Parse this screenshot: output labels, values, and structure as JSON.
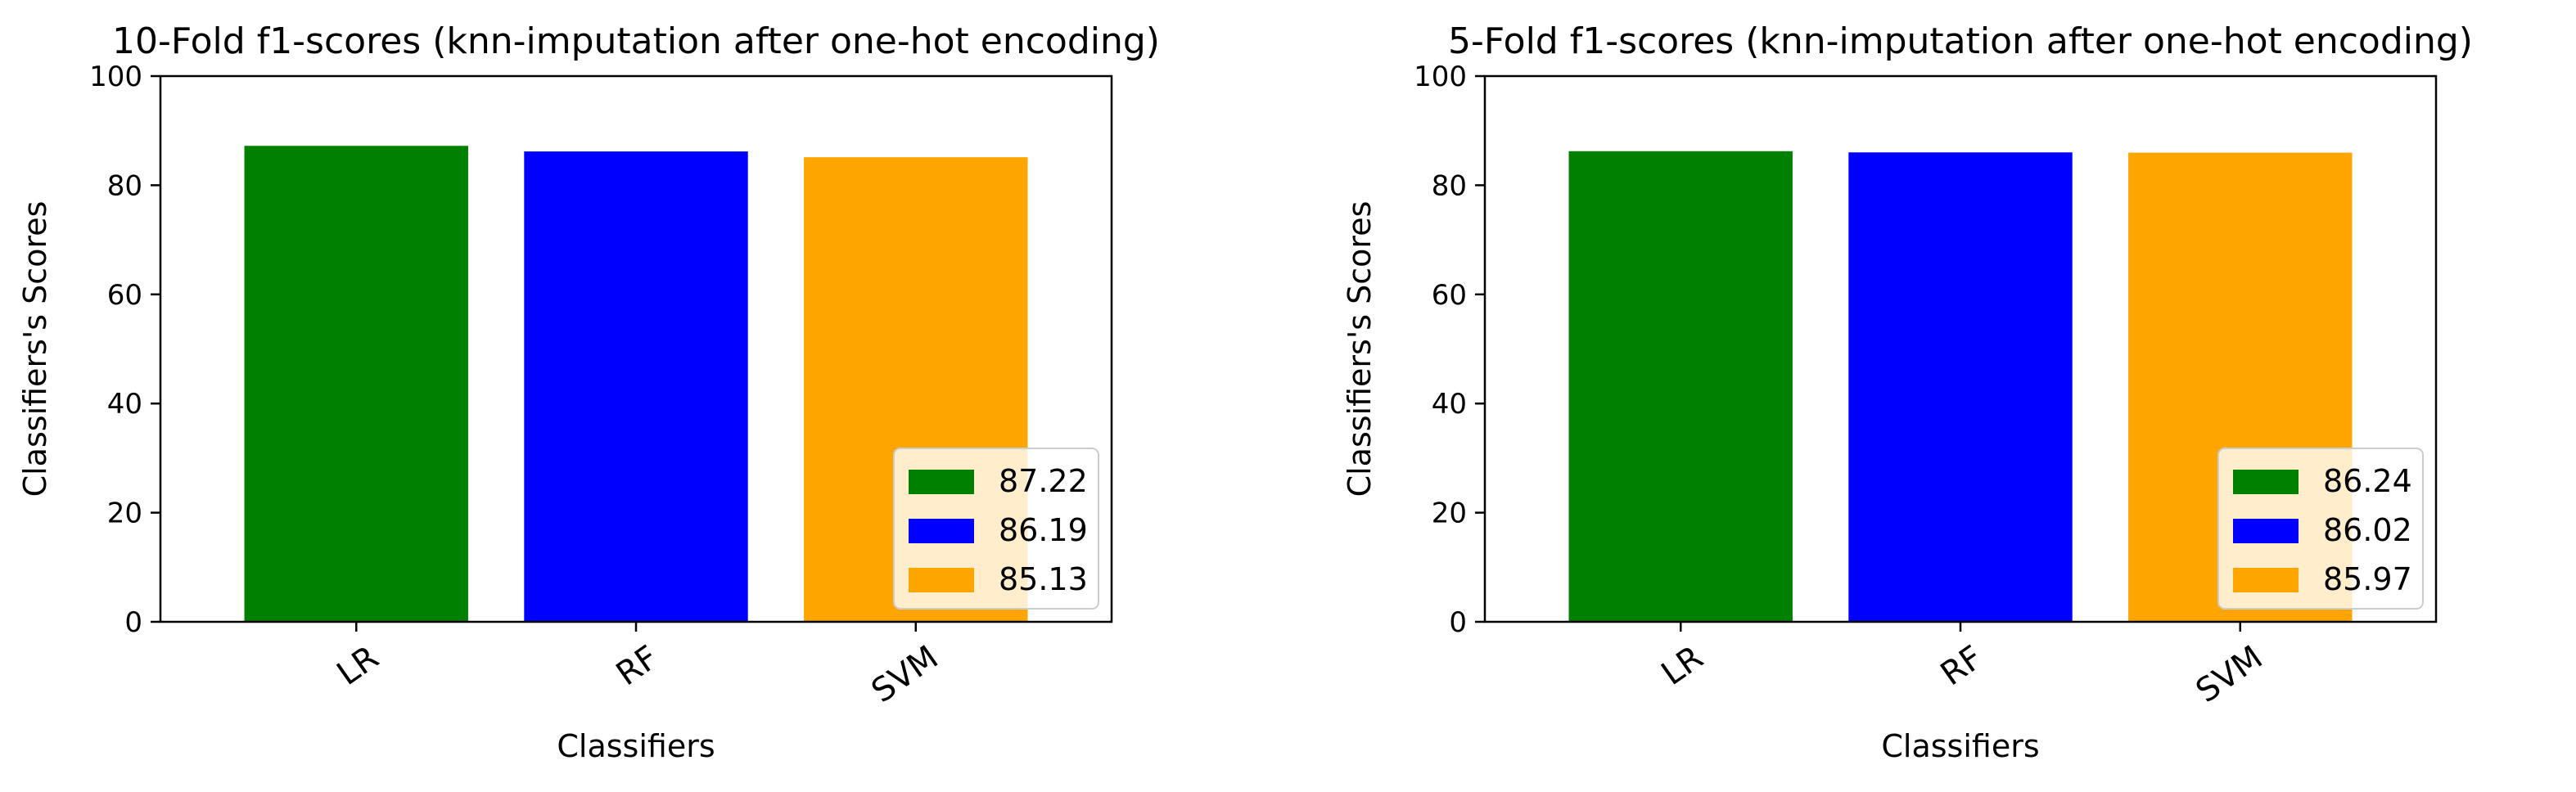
{
  "chart_data": [
    {
      "type": "bar",
      "title": "10-Fold f1-scores (knn-imputation after one-hot encoding)",
      "xlabel": "Classifiers",
      "ylabel": "Classifiers's Scores",
      "categories": [
        "LR",
        "RF",
        "SVM"
      ],
      "values": [
        87.22,
        86.19,
        85.13
      ],
      "colors": [
        "#008000",
        "#0000ff",
        "#ffa500"
      ],
      "ylim": [
        0,
        100
      ],
      "yticks": [
        0,
        20,
        40,
        60,
        80,
        100
      ],
      "grid": false,
      "legend": {
        "position": "lower-right",
        "entries": [
          {
            "label": "87.22",
            "color": "#008000"
          },
          {
            "label": "86.19",
            "color": "#0000ff"
          },
          {
            "label": "85.13",
            "color": "#ffa500"
          }
        ]
      }
    },
    {
      "type": "bar",
      "title": "5-Fold f1-scores (knn-imputation after one-hot encoding)",
      "xlabel": "Classifiers",
      "ylabel": "Classifiers's Scores",
      "categories": [
        "LR",
        "RF",
        "SVM"
      ],
      "values": [
        86.24,
        86.02,
        85.97
      ],
      "colors": [
        "#008000",
        "#0000ff",
        "#ffa500"
      ],
      "ylim": [
        0,
        100
      ],
      "yticks": [
        0,
        20,
        40,
        60,
        80,
        100
      ],
      "grid": false,
      "legend": {
        "position": "lower-right",
        "entries": [
          {
            "label": "86.24",
            "color": "#008000"
          },
          {
            "label": "86.02",
            "color": "#0000ff"
          },
          {
            "label": "85.97",
            "color": "#ffa500"
          }
        ]
      }
    }
  ]
}
